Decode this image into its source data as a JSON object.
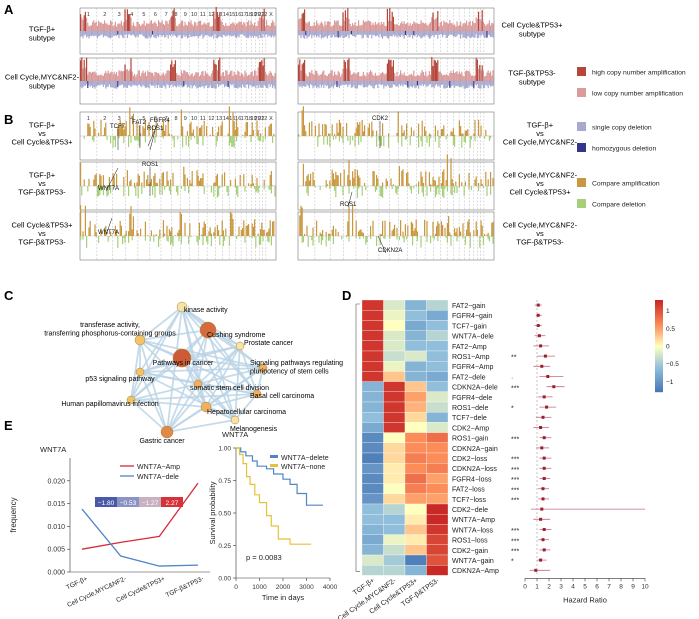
{
  "panels": {
    "A": "A",
    "B": "B",
    "C": "C",
    "D": "D",
    "E": "E"
  },
  "chromosomes": [
    "1",
    "2",
    "3",
    "4",
    "5",
    "6",
    "7",
    "8",
    "9",
    "10",
    "11",
    "12",
    "13",
    "14",
    "15",
    "16",
    "17",
    "18",
    "19",
    "20",
    "21",
    "22",
    "X"
  ],
  "panelA": {
    "left_labels": [
      "TGF-β+\nsubtype",
      "Cell Cycle,MYC&NF2-\nsubtype"
    ],
    "right_labels": [
      "Cell Cycle&TP53+\nsubtype",
      "TGF-β&TP53-\nsubtype"
    ]
  },
  "legend": {
    "items": [
      {
        "label": "high copy number amplification",
        "color": "#b5473a"
      },
      {
        "label": "low copy number amplification",
        "color": "#d99b9b"
      },
      {
        "label": "single copy deletion",
        "color": "#a7a9cf"
      },
      {
        "label": "homozygous deletion",
        "color": "#33358a"
      },
      {
        "label": "Compare amplification",
        "color": "#c9973f"
      },
      {
        "label": "Compare deletion",
        "color": "#a6cf7a"
      }
    ]
  },
  "panelB": {
    "left_labels": [
      "TGF-β+\nvs\nCell Cycle&TP53+",
      "TGF-β+\nvs\nTGF-β&TP53-",
      "Cell Cycle&TP53+\nvs\nTGF-β&TP53-"
    ],
    "right_labels": [
      "TGF-β+\nvs\nCell Cycle,MYC&NF2-",
      "Cell Cycle,MYC&NF2-\nvs\nCell Cycle&TP53+",
      "Cell Cycle,MYC&NF2-\nvs\nTGF-β&TP53-"
    ],
    "gene_labels": [
      "TCF7",
      "FAT2",
      "FGFR4",
      "ROS1",
      "WNT7A",
      "ROS1",
      "WNT7A",
      "CDK2",
      "ROS1",
      "CDKN2A"
    ]
  },
  "panelC": {
    "nodes": [
      "kinase activity",
      "transferase activity,\ntransferring phosphorus-containing groups",
      "Cushing syndrome",
      "Prostate cancer",
      "Pathways in cancer",
      "Signaling pathways regulating\npluripotency of stem cells",
      "p53 signaling pathway",
      "somatic stem cell division",
      "Basal cell carcinoma",
      "Human papillomavirus infection",
      "Hepatocellular carcinoma",
      "Melanogenesis",
      "Gastric cancer"
    ]
  },
  "panelD": {
    "columns": [
      "TGF-β+",
      "Cell Cycle,MYC&NF2-",
      "Cell Cycle&TP53+",
      "TGF-β&TP53-"
    ],
    "rows": [
      "FAT2−gain",
      "FGFR4−gain",
      "TCF7−gain",
      "WNT7A−dele",
      "FAT2−Amp",
      "ROS1−Amp",
      "FGFR4−Amp",
      "FAT2−dele",
      "CDKN2A−dele",
      "FGFR4−dele",
      "ROS1−dele",
      "TCF7−dele",
      "CDK2−Amp",
      "ROS1−gain",
      "CDKN2A−gain",
      "CDK2−loss",
      "CDKN2A−loss",
      "FGFR4−loss",
      "FAT2−loss",
      "TCF7−loss",
      "CDK2−dele",
      "WNT7A−Amp",
      "WNT7A−loss",
      "ROS1−loss",
      "CDK2−gain",
      "WNT7A−gain",
      "CDKN2A−Amp"
    ],
    "values": [
      [
        1.2,
        -0.2,
        -0.7,
        -0.4
      ],
      [
        1.2,
        -0.1,
        -0.6,
        -0.8
      ],
      [
        1.2,
        0.0,
        -0.8,
        -0.6
      ],
      [
        1.2,
        -0.2,
        -0.7,
        -0.4
      ],
      [
        1.2,
        -0.2,
        -0.6,
        -0.6
      ],
      [
        1.2,
        -0.3,
        -0.2,
        -0.6
      ],
      [
        1.2,
        -0.1,
        -0.7,
        -0.6
      ],
      [
        1.2,
        0.3,
        -0.7,
        -0.8
      ],
      [
        -0.7,
        1.2,
        0.3,
        -0.6
      ],
      [
        -0.7,
        1.2,
        0.5,
        -0.2
      ],
      [
        -0.7,
        1.2,
        0.4,
        -0.3
      ],
      [
        -0.6,
        1.2,
        0.2,
        -0.7
      ],
      [
        -0.8,
        1.2,
        0.0,
        -0.2
      ],
      [
        -1.1,
        0.0,
        0.6,
        0.8
      ],
      [
        -1.1,
        0.2,
        0.6,
        0.6
      ],
      [
        -1.2,
        0.2,
        0.7,
        0.6
      ],
      [
        -1.0,
        0.1,
        0.6,
        0.7
      ],
      [
        -1.1,
        0.1,
        0.8,
        0.5
      ],
      [
        -1.1,
        0.0,
        0.7,
        0.6
      ],
      [
        -1.0,
        0.2,
        0.5,
        0.5
      ],
      [
        -0.6,
        -0.4,
        0.0,
        1.3
      ],
      [
        -0.6,
        -0.6,
        0.1,
        1.3
      ],
      [
        -0.7,
        -0.6,
        0.3,
        1.2
      ],
      [
        -0.8,
        -0.1,
        0.1,
        1.1
      ],
      [
        -0.7,
        -0.3,
        0.3,
        1.1
      ],
      [
        -0.2,
        -0.5,
        -1.2,
        1.0
      ],
      [
        -0.4,
        -0.4,
        -0.7,
        1.3
      ]
    ],
    "significance": [
      "",
      "",
      "",
      "",
      "",
      "**",
      "",
      "·",
      "***",
      "",
      "*",
      "",
      "",
      "***",
      "",
      "***",
      "***",
      "***",
      "***",
      "***",
      "",
      "",
      "***",
      "***",
      "***",
      "*",
      ""
    ],
    "hr": [
      1.1,
      1.1,
      1.1,
      1.2,
      1.3,
      1.7,
      1.4,
      1.9,
      2.4,
      1.6,
      1.8,
      1.5,
      1.3,
      1.6,
      1.4,
      1.6,
      1.6,
      1.6,
      1.5,
      1.5,
      1.4,
      1.3,
      1.6,
      1.5,
      1.6,
      1.3,
      0.9
    ],
    "hr_low": [
      0.8,
      0.9,
      0.8,
      0.8,
      0.7,
      1.0,
      0.7,
      1.2,
      1.8,
      1.1,
      1.2,
      0.9,
      0.7,
      1.2,
      0.9,
      1.2,
      1.2,
      1.2,
      1.1,
      1.1,
      0.5,
      0.7,
      1.2,
      1.1,
      1.2,
      1.0,
      0.4
    ],
    "hr_high": [
      1.4,
      1.4,
      1.4,
      1.7,
      2.0,
      2.5,
      2.1,
      3.2,
      3.3,
      2.3,
      2.6,
      2.2,
      2.0,
      2.2,
      2.0,
      2.2,
      2.2,
      2.1,
      2.0,
      2.0,
      10.0,
      2.1,
      2.2,
      2.0,
      2.1,
      1.8,
      2.1
    ],
    "hr_axis_label": "Hazard Ratio",
    "hr_ticks": [
      "0",
      "1",
      "2",
      "3",
      "4",
      "5",
      "6",
      "7",
      "8",
      "9",
      "10"
    ],
    "colorbar_ticks": [
      "1",
      "0.5",
      "0",
      "−0.5",
      "−1"
    ]
  },
  "panelE": {
    "title": "WNT7A",
    "ylabel": "frequency",
    "yticks": [
      "0.020",
      "0.015",
      "0.010",
      "0.005",
      "0.000"
    ],
    "categories": [
      "TGF-β+",
      "Cell Cycle,MYC&NF2-",
      "Cell Cycle&TP53+",
      "TGF-β&TP53-"
    ],
    "legend": [
      "WNT7A−Amp",
      "WNT7A−dele"
    ],
    "amp_values": [
      0.005,
      0.0065,
      0.0078,
      0.0195
    ],
    "dele_values": [
      0.0138,
      0.0035,
      0.0013,
      0.0015
    ],
    "colorbar_labels": [
      "−1.80",
      "−0.53",
      "−1.27",
      "2.27"
    ]
  },
  "survival": {
    "title": "WNT7A",
    "ylabel": "Survival probability",
    "xlabel": "Time in days",
    "xticks": [
      "0",
      "1000",
      "2000",
      "3000",
      "4000"
    ],
    "yticks": [
      "1.00",
      "0.75",
      "0.50",
      "0.25",
      "0.00"
    ],
    "legend": [
      "WNT7A−delete",
      "WNT7A−none"
    ],
    "pvalue": "p = 0.0083"
  },
  "chart_data": {
    "type": "line",
    "title": "WNT7A",
    "categories": [
      "TGF-β+",
      "Cell Cycle,MYC&NF2-",
      "Cell Cycle&TP53+",
      "TGF-β&TP53-"
    ],
    "series": [
      {
        "name": "WNT7A−Amp",
        "values": [
          0.005,
          0.0065,
          0.0078,
          0.0195
        ]
      },
      {
        "name": "WNT7A−dele",
        "values": [
          0.0138,
          0.0035,
          0.0013,
          0.0015
        ]
      }
    ],
    "ylabel": "frequency",
    "ylim": [
      0,
      0.025
    ]
  }
}
